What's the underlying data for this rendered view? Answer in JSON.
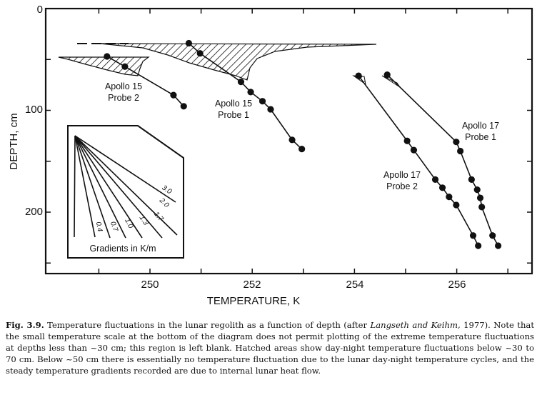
{
  "chart_data": {
    "type": "line",
    "xlabel": "TEMPERATURE, K",
    "ylabel": "DEPTH, cm",
    "xlim": [
      248,
      257.7
    ],
    "ylim": [
      0,
      259
    ],
    "y_inverted": true,
    "grid": false,
    "x_ticks": [
      "250",
      "252",
      "254",
      "256"
    ],
    "y_ticks": [
      "0",
      "100",
      "200"
    ],
    "series": [
      {
        "name": "Apollo 15 Probe 2",
        "label_lines": [
          "Apollo 15",
          "Probe 2"
        ],
        "x": [
          249.16,
          249.51,
          250.46,
          250.66
        ],
        "y": [
          47,
          57,
          85,
          96
        ]
      },
      {
        "name": "Apollo 15 Probe 1",
        "label_lines": [
          "Apollo 15",
          "Probe 1"
        ],
        "x": [
          250.76,
          250.98,
          251.78,
          251.97,
          252.2,
          252.36,
          252.78,
          252.97
        ],
        "y": [
          34,
          44,
          72,
          82,
          91,
          99,
          129,
          138
        ]
      },
      {
        "name": "Apollo 17 Probe 2",
        "label_lines": [
          "Apollo 17",
          "Probe 2"
        ],
        "x": [
          254.08,
          255.03,
          255.16,
          255.58,
          255.72,
          255.85,
          255.99,
          256.32,
          256.42
        ],
        "y": [
          66,
          130,
          139,
          168,
          176,
          185,
          193,
          223,
          233
        ]
      },
      {
        "name": "Apollo 17 Probe 1",
        "label_lines": [
          "Apollo 17",
          "Probe 1"
        ],
        "x": [
          254.64,
          255.99,
          256.07,
          256.29,
          256.4,
          256.46,
          256.49,
          256.7,
          256.81
        ],
        "y": [
          65,
          131,
          140,
          168,
          178,
          186,
          195,
          223,
          233
        ]
      }
    ],
    "inset": {
      "title": "Gradients in K/m",
      "gradients": [
        "0.4",
        "0.7",
        "1.0",
        "1.3",
        "1.7",
        "2.0",
        "3.0"
      ]
    }
  },
  "caption": {
    "fig_label": "Fig. 3.9.",
    "text_1": " Temperature fluctuations in the lunar regolith as a function of depth (after ",
    "citation": "Langseth and Keihm,",
    "text_2": " 1977). Note that the small temperature scale at the bottom of the diagram does not permit plotting of the extreme temperature fluctuations at depths less than ~30 cm; this region is left blank. Hatched areas show day-night temperature fluctuations below ~30 to 70 cm. Below ~50 cm there is essentially no temperature fluctuation due to the lunar day-night temperature cycles, and the steady temperature gradients recorded are due to internal lunar heat flow."
  }
}
